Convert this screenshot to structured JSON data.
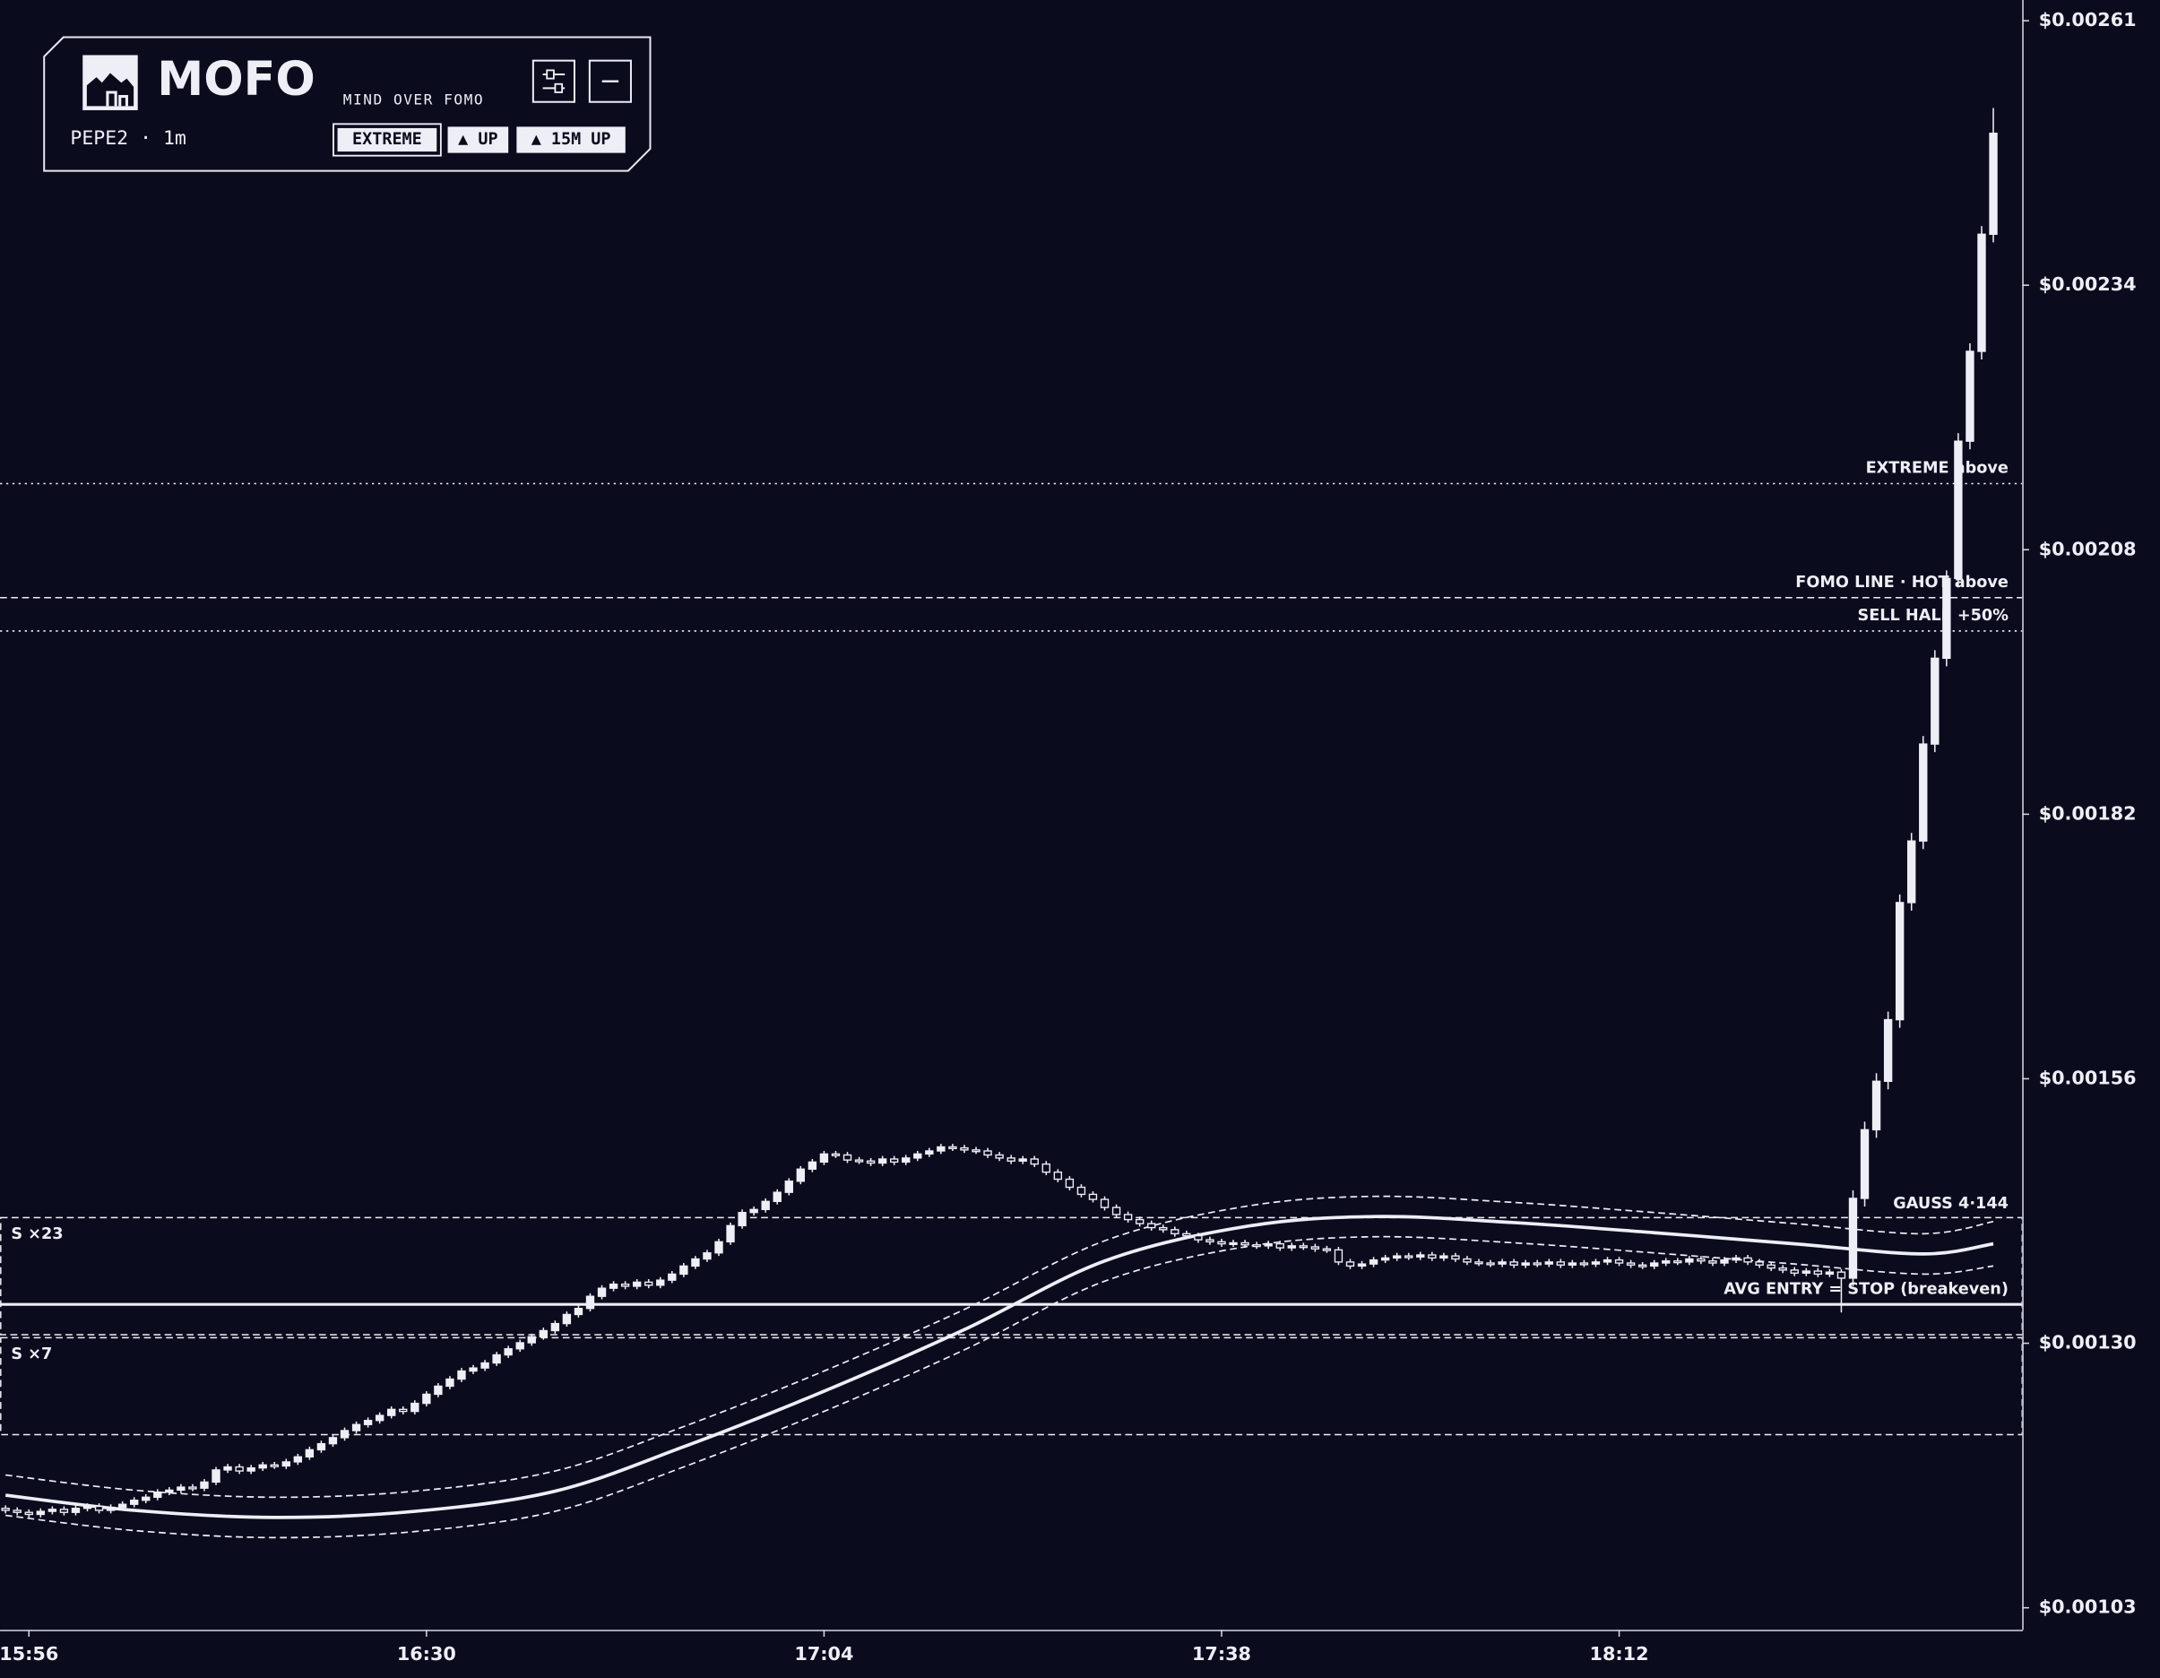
{
  "header": {
    "title": "MOFO",
    "tagline": "MIND OVER FOMO",
    "symbol": "PEPE2 · 1m",
    "badges": [
      "EXTREME",
      "▲ UP",
      "▲ 15M UP"
    ]
  },
  "chart_data": {
    "type": "candlestick",
    "color": "#eeeef6",
    "x": [
      "15:54",
      "15:55",
      "15:56",
      "15:57",
      "15:58",
      "15:59",
      "16:00",
      "16:01",
      "16:02",
      "16:03",
      "16:04",
      "16:05",
      "16:06",
      "16:07",
      "16:08",
      "16:09",
      "16:10",
      "16:11",
      "16:12",
      "16:13",
      "16:14",
      "16:15",
      "16:16",
      "16:17",
      "16:18",
      "16:19",
      "16:20",
      "16:21",
      "16:22",
      "16:23",
      "16:24",
      "16:25",
      "16:26",
      "16:27",
      "16:28",
      "16:29",
      "16:30",
      "16:31",
      "16:32",
      "16:33",
      "16:34",
      "16:35",
      "16:36",
      "16:37",
      "16:38",
      "16:39",
      "16:40",
      "16:41",
      "16:42",
      "16:43",
      "16:44",
      "16:45",
      "16:46",
      "16:47",
      "16:48",
      "16:49",
      "16:50",
      "16:51",
      "16:52",
      "16:53",
      "16:54",
      "16:55",
      "16:56",
      "16:57",
      "16:58",
      "16:59",
      "17:00",
      "17:01",
      "17:02",
      "17:03",
      "17:04",
      "17:05",
      "17:06",
      "17:07",
      "17:08",
      "17:09",
      "17:10",
      "17:11",
      "17:12",
      "17:13",
      "17:14",
      "17:15",
      "17:16",
      "17:17",
      "17:18",
      "17:19",
      "17:20",
      "17:21",
      "17:22",
      "17:23",
      "17:24",
      "17:25",
      "17:26",
      "17:27",
      "17:28",
      "17:29",
      "17:30",
      "17:31",
      "17:32",
      "17:33",
      "17:34",
      "17:35",
      "17:36",
      "17:37",
      "17:38",
      "17:39",
      "17:40",
      "17:41",
      "17:42",
      "17:43",
      "17:44",
      "17:45",
      "17:46",
      "17:47",
      "17:48",
      "17:49",
      "17:50",
      "17:51",
      "17:52",
      "17:53",
      "17:54",
      "17:55",
      "17:56",
      "17:57",
      "17:58",
      "17:59",
      "18:00",
      "18:01",
      "18:02",
      "18:03",
      "18:04",
      "18:05",
      "18:06",
      "18:07",
      "18:08",
      "18:09",
      "18:10",
      "18:11",
      "18:12",
      "18:13",
      "18:14",
      "18:15",
      "18:16",
      "18:17",
      "18:18",
      "18:19",
      "18:20",
      "18:21",
      "18:22",
      "18:23",
      "18:24",
      "18:25",
      "18:26",
      "18:27",
      "18:28",
      "18:29",
      "18:30",
      "18:31",
      "18:32",
      "18:33",
      "18:34",
      "18:35",
      "18:36",
      "18:37",
      "18:38",
      "18:39",
      "18:40",
      "18:41",
      "18:42",
      "18:43",
      "18:44"
    ],
    "open": [
      0.001132,
      0.00113,
      0.001128,
      0.001126,
      0.001129,
      0.001131,
      0.001128,
      0.001132,
      0.001134,
      0.00113,
      0.001133,
      0.001136,
      0.00114,
      0.001143,
      0.001148,
      0.00115,
      0.001153,
      0.001152,
      0.001158,
      0.00117,
      0.001173,
      0.001169,
      0.001172,
      0.001175,
      0.001174,
      0.001178,
      0.001183,
      0.00119,
      0.001196,
      0.001202,
      0.001209,
      0.001215,
      0.001219,
      0.001224,
      0.00123,
      0.001228,
      0.001236,
      0.001245,
      0.001253,
      0.00126,
      0.001268,
      0.001271,
      0.001276,
      0.001284,
      0.00129,
      0.001296,
      0.001302,
      0.001308,
      0.001315,
      0.001324,
      0.00133,
      0.001342,
      0.00135,
      0.001354,
      0.001352,
      0.001356,
      0.001353,
      0.001358,
      0.001364,
      0.001372,
      0.001379,
      0.001385,
      0.001396,
      0.001412,
      0.001425,
      0.001428,
      0.001436,
      0.001445,
      0.001456,
      0.001468,
      0.001475,
      0.001483,
      0.001482,
      0.001477,
      0.001476,
      0.001474,
      0.001478,
      0.001475,
      0.001479,
      0.001483,
      0.001486,
      0.00149,
      0.001489,
      0.001487,
      0.001486,
      0.001482,
      0.001479,
      0.001476,
      0.001478,
      0.001473,
      0.001465,
      0.001458,
      0.00145,
      0.001443,
      0.001438,
      0.00143,
      0.001423,
      0.001418,
      0.001414,
      0.00141,
      0.001408,
      0.001404,
      0.001402,
      0.001398,
      0.001396,
      0.001394,
      0.001395,
      0.001393,
      0.001392,
      0.001394,
      0.00139,
      0.001392,
      0.001391,
      0.001389,
      0.001388,
      0.001376,
      0.001372,
      0.001374,
      0.001378,
      0.00138,
      0.001382,
      0.001381,
      0.001383,
      0.00138,
      0.001382,
      0.001379,
      0.001376,
      0.001375,
      0.001374,
      0.001376,
      0.001373,
      0.001375,
      0.001374,
      0.001376,
      0.001373,
      0.001375,
      0.001374,
      0.001376,
      0.001378,
      0.001375,
      0.001373,
      0.001372,
      0.001375,
      0.001377,
      0.001376,
      0.001379,
      0.001377,
      0.001375,
      0.001378,
      0.00138,
      0.001376,
      0.001373,
      0.00137,
      0.001368,
      0.001365,
      0.001367,
      0.001364,
      0.001366,
      0.00136,
      0.001439,
      0.001507,
      0.001555,
      0.001616,
      0.001732,
      0.001793,
      0.001889,
      0.001974,
      0.002053,
      0.002189,
      0.002278,
      0.002394
    ],
    "high": [
      0.001135,
      0.001133,
      0.001131,
      0.001132,
      0.001134,
      0.001134,
      0.001135,
      0.001137,
      0.001137,
      0.001136,
      0.001139,
      0.001143,
      0.001146,
      0.001151,
      0.001153,
      0.001156,
      0.001156,
      0.001161,
      0.001173,
      0.001176,
      0.001176,
      0.001175,
      0.001178,
      0.001178,
      0.001181,
      0.001186,
      0.001193,
      0.001199,
      0.001205,
      0.001212,
      0.001218,
      0.001222,
      0.001227,
      0.001233,
      0.001233,
      0.001239,
      0.001248,
      0.001256,
      0.001263,
      0.001271,
      0.001274,
      0.001279,
      0.001287,
      0.001293,
      0.001299,
      0.001305,
      0.001311,
      0.001318,
      0.001327,
      0.001333,
      0.001345,
      0.001353,
      0.001357,
      0.001357,
      0.001359,
      0.001359,
      0.001361,
      0.001367,
      0.001375,
      0.001382,
      0.001388,
      0.001399,
      0.001415,
      0.001428,
      0.001431,
      0.001439,
      0.001448,
      0.001459,
      0.001471,
      0.001478,
      0.001486,
      0.001486,
      0.001485,
      0.00148,
      0.001479,
      0.001481,
      0.001481,
      0.001482,
      0.001486,
      0.001489,
      0.001493,
      0.001493,
      0.001492,
      0.00149,
      0.001489,
      0.001485,
      0.001482,
      0.001481,
      0.001481,
      0.001476,
      0.001468,
      0.001461,
      0.001453,
      0.001446,
      0.001441,
      0.001433,
      0.001426,
      0.001421,
      0.001417,
      0.001413,
      0.001411,
      0.001407,
      0.001405,
      0.001401,
      0.001399,
      0.001398,
      0.001398,
      0.001396,
      0.001397,
      0.001397,
      0.001395,
      0.001395,
      0.001394,
      0.001392,
      0.001391,
      0.001379,
      0.001377,
      0.001381,
      0.001383,
      0.001385,
      0.001385,
      0.001386,
      0.001386,
      0.001385,
      0.001385,
      0.001382,
      0.001379,
      0.001378,
      0.001379,
      0.001379,
      0.001378,
      0.001378,
      0.001379,
      0.001379,
      0.001378,
      0.001378,
      0.001379,
      0.001381,
      0.001381,
      0.001378,
      0.001376,
      0.001378,
      0.00138,
      0.00138,
      0.001382,
      0.001382,
      0.00138,
      0.001381,
      0.001383,
      0.001383,
      0.001379,
      0.001376,
      0.001373,
      0.001371,
      0.00137,
      0.00137,
      0.001369,
      0.001369,
      0.001447,
      0.001515,
      0.001563,
      0.001624,
      0.00174,
      0.001801,
      0.001897,
      0.001982,
      0.002061,
      0.002197,
      0.002286,
      0.002402,
      0.002519
    ],
    "low": [
      0.001127,
      0.001125,
      0.001123,
      0.001123,
      0.001126,
      0.001125,
      0.001125,
      0.001129,
      0.001127,
      0.001127,
      0.00113,
      0.001133,
      0.001137,
      0.00114,
      0.001145,
      0.001147,
      0.001149,
      0.001149,
      0.001155,
      0.001167,
      0.001166,
      0.001166,
      0.001169,
      0.001171,
      0.001171,
      0.001175,
      0.00118,
      0.001187,
      0.001193,
      0.001199,
      0.001206,
      0.001212,
      0.001216,
      0.001221,
      0.001225,
      0.001225,
      0.001233,
      0.001242,
      0.00125,
      0.001257,
      0.001265,
      0.001268,
      0.001273,
      0.001281,
      0.001287,
      0.001293,
      0.001299,
      0.001305,
      0.001312,
      0.001321,
      0.001327,
      0.001339,
      0.001347,
      0.001349,
      0.001349,
      0.00135,
      0.00135,
      0.001355,
      0.001361,
      0.001369,
      0.001376,
      0.001382,
      0.001393,
      0.001409,
      0.001422,
      0.001425,
      0.001433,
      0.001442,
      0.001453,
      0.001465,
      0.001472,
      0.001479,
      0.001474,
      0.001473,
      0.001471,
      0.001471,
      0.001472,
      0.001472,
      0.001476,
      0.00148,
      0.001483,
      0.001486,
      0.001484,
      0.001483,
      0.001479,
      0.001476,
      0.001473,
      0.001473,
      0.00147,
      0.001462,
      0.001455,
      0.001447,
      0.00144,
      0.001435,
      0.001427,
      0.00142,
      0.001415,
      0.001411,
      0.001407,
      0.001405,
      0.001401,
      0.001399,
      0.001395,
      0.001393,
      0.001391,
      0.001391,
      0.00139,
      0.001389,
      0.001389,
      0.001387,
      0.001387,
      0.001388,
      0.001386,
      0.001385,
      0.001373,
      0.001369,
      0.001369,
      0.001371,
      0.001375,
      0.001377,
      0.001378,
      0.001378,
      0.001377,
      0.001377,
      0.001376,
      0.001373,
      0.001372,
      0.001371,
      0.001371,
      0.00137,
      0.00137,
      0.001371,
      0.001371,
      0.00137,
      0.00137,
      0.001371,
      0.001371,
      0.001373,
      0.001372,
      0.00137,
      0.001369,
      0.001369,
      0.001372,
      0.001373,
      0.001373,
      0.001374,
      0.001372,
      0.001372,
      0.001375,
      0.001373,
      0.00137,
      0.001367,
      0.001365,
      0.001362,
      0.001362,
      0.001361,
      0.001361,
      0.001326,
      0.001352,
      0.001431,
      0.001499,
      0.001547,
      0.001608,
      0.001724,
      0.001785,
      0.001881,
      0.001966,
      0.002045,
      0.002181,
      0.00227,
      0.002386
    ],
    "close": [
      0.00113,
      0.001128,
      0.001126,
      0.001129,
      0.001131,
      0.001128,
      0.001132,
      0.001134,
      0.00113,
      0.001133,
      0.001136,
      0.00114,
      0.001143,
      0.001148,
      0.00115,
      0.001153,
      0.001152,
      0.001158,
      0.00117,
      0.001173,
      0.001169,
      0.001172,
      0.001175,
      0.001174,
      0.001178,
      0.001183,
      0.00119,
      0.001196,
      0.001202,
      0.001209,
      0.001215,
      0.001219,
      0.001224,
      0.00123,
      0.001228,
      0.001236,
      0.001245,
      0.001253,
      0.00126,
      0.001268,
      0.001271,
      0.001276,
      0.001284,
      0.00129,
      0.001296,
      0.001302,
      0.001308,
      0.001315,
      0.001324,
      0.00133,
      0.001342,
      0.00135,
      0.001354,
      0.001352,
      0.001356,
      0.001353,
      0.001358,
      0.001364,
      0.001372,
      0.001379,
      0.001385,
      0.001396,
      0.001412,
      0.001425,
      0.001428,
      0.001436,
      0.001445,
      0.001456,
      0.001468,
      0.001475,
      0.001483,
      0.001482,
      0.001477,
      0.001476,
      0.001474,
      0.001478,
      0.001475,
      0.001479,
      0.001483,
      0.001486,
      0.00149,
      0.001489,
      0.001487,
      0.001486,
      0.001482,
      0.001479,
      0.001476,
      0.001478,
      0.001473,
      0.001465,
      0.001458,
      0.00145,
      0.001443,
      0.001438,
      0.00143,
      0.001423,
      0.001418,
      0.001414,
      0.00141,
      0.001408,
      0.001404,
      0.001402,
      0.001398,
      0.001396,
      0.001394,
      0.001395,
      0.001393,
      0.001392,
      0.001394,
      0.00139,
      0.001392,
      0.001391,
      0.001389,
      0.001388,
      0.001376,
      0.001372,
      0.001374,
      0.001378,
      0.00138,
      0.001382,
      0.001381,
      0.001383,
      0.00138,
      0.001382,
      0.001379,
      0.001376,
      0.001375,
      0.001374,
      0.001376,
      0.001373,
      0.001375,
      0.001374,
      0.001376,
      0.001373,
      0.001375,
      0.001374,
      0.001376,
      0.001378,
      0.001375,
      0.001373,
      0.001372,
      0.001375,
      0.001377,
      0.001376,
      0.001379,
      0.001377,
      0.001375,
      0.001378,
      0.00138,
      0.001376,
      0.001373,
      0.00137,
      0.001368,
      0.001365,
      0.001367,
      0.001364,
      0.001366,
      0.00136,
      0.001439,
      0.001507,
      0.001555,
      0.001616,
      0.001732,
      0.001793,
      0.001889,
      0.001974,
      0.002053,
      0.002189,
      0.002278,
      0.002394,
      0.002494
    ],
    "xlim": [
      "15:54",
      "18:46"
    ],
    "xticks": [
      "15:56",
      "16:30",
      "17:04",
      "17:38",
      "18:12"
    ],
    "ylim": [
      0.0010117,
      0.002626
    ],
    "yticks": [
      {
        "value": 0.0010335,
        "label": "$0.00103"
      },
      {
        "value": 0.0012955,
        "label": "$0.00130"
      },
      {
        "value": 0.0015575,
        "label": "$0.00156"
      },
      {
        "value": 0.0018195,
        "label": "$0.00182"
      },
      {
        "value": 0.0020815,
        "label": "$0.00208"
      },
      {
        "value": 0.0023435,
        "label": "$0.00234"
      },
      {
        "value": 0.0026055,
        "label": "$0.00261"
      }
    ],
    "levels": [
      {
        "label": "EXTREME above",
        "value": 0.002147,
        "style": "dotted"
      },
      {
        "label": "FOMO LINE · HOT above",
        "value": 0.002034,
        "style": "dashed"
      },
      {
        "label": "SELL HALF +50%",
        "value": 0.002001,
        "style": "dotted"
      },
      {
        "label": "AVG ENTRY = STOP (breakeven)",
        "value": 0.001334,
        "style": "solid"
      }
    ],
    "zones": [
      {
        "label": "S ×23",
        "top": 0.00142,
        "bottom": 0.001304
      },
      {
        "label": "S ×7",
        "top": 0.001301,
        "bottom": 0.001205
      }
    ],
    "bands": [
      {
        "name": "GAUSS 4·144",
        "x": [
          "15:54",
          "16:05",
          "16:17",
          "16:29",
          "16:41",
          "16:52",
          "17:04",
          "17:16",
          "17:28",
          "17:40",
          "17:51",
          "18:03",
          "18:15",
          "18:27",
          "18:38",
          "18:44"
        ],
        "values": [
          0.001145,
          0.00113,
          0.001123,
          0.001129,
          0.001149,
          0.001193,
          0.001248,
          0.001309,
          0.001377,
          0.001411,
          0.001421,
          0.001415,
          0.001405,
          0.001394,
          0.001384,
          0.001394
        ],
        "upper": [
          0.001165,
          0.00115,
          0.001143,
          0.001149,
          0.001169,
          0.001213,
          0.001268,
          0.001329,
          0.001397,
          0.001431,
          0.001441,
          0.001435,
          0.001425,
          0.001414,
          0.001404,
          0.001416
        ],
        "lower": [
          0.001125,
          0.00111,
          0.001103,
          0.001109,
          0.001129,
          0.001173,
          0.001228,
          0.001289,
          0.001357,
          0.001391,
          0.001401,
          0.001395,
          0.001385,
          0.001374,
          0.001364,
          0.001372
        ]
      }
    ]
  }
}
